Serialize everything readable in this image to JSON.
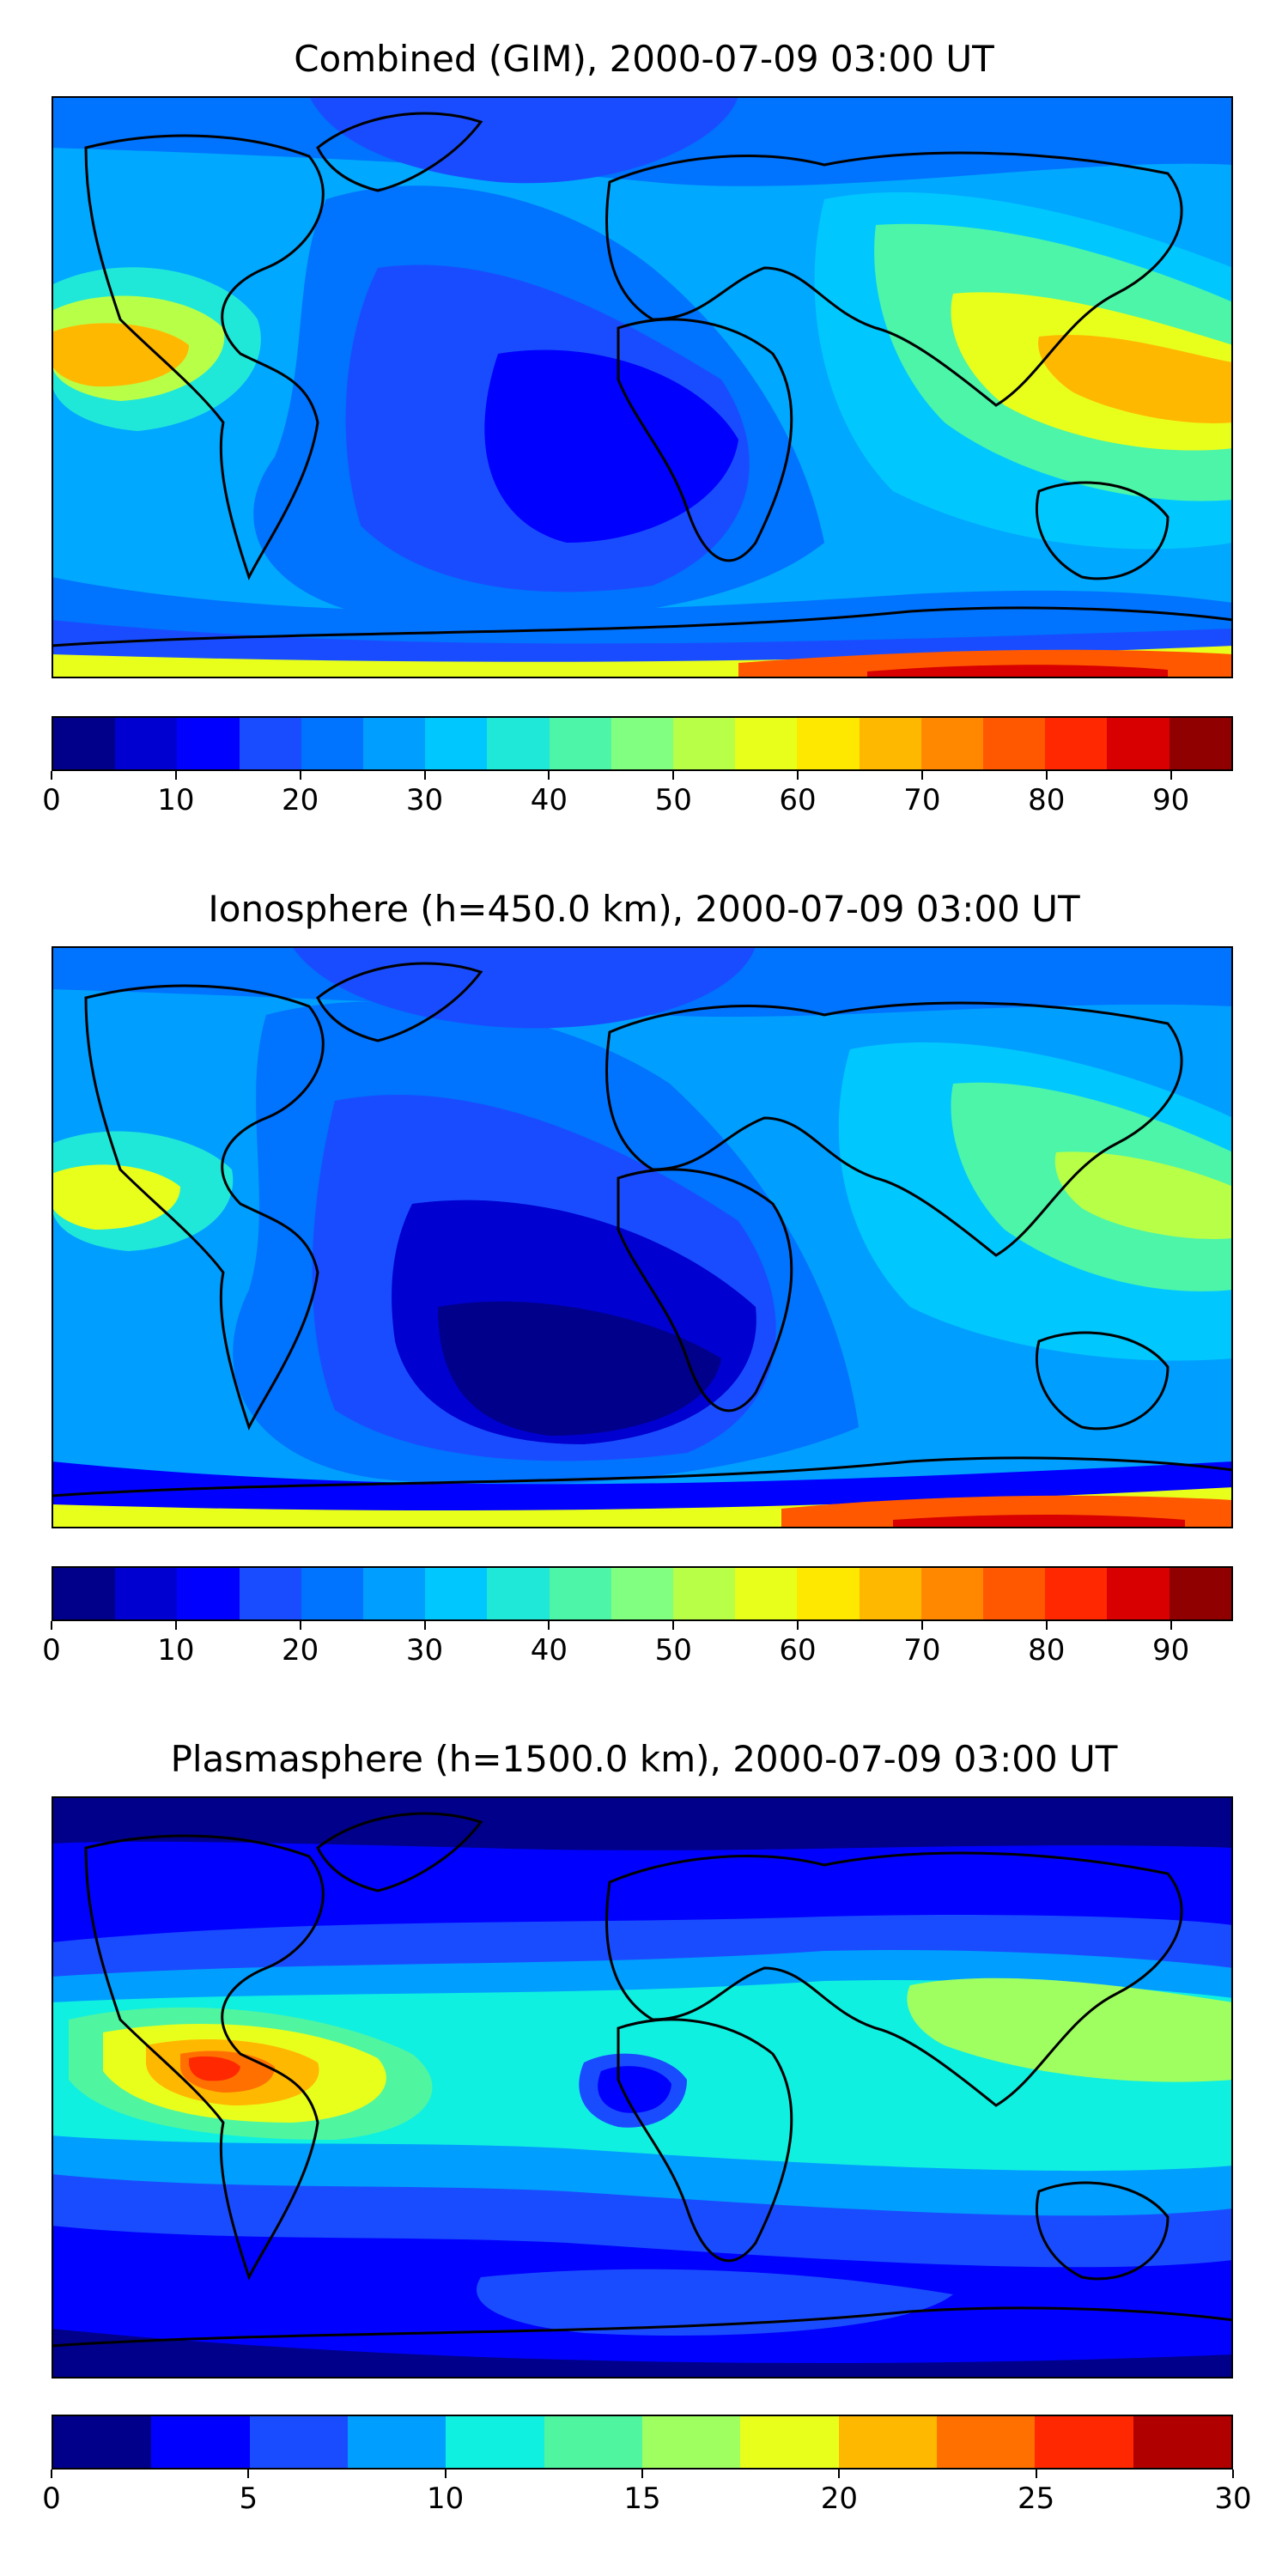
{
  "panels": [
    {
      "title": "Combined (GIM), 2000-07-09 03:00 UT",
      "colorbar": {
        "colors": [
          "#00008b",
          "#0000d0",
          "#0000ff",
          "#1a4cff",
          "#0073ff",
          "#009fff",
          "#00c8ff",
          "#20e8d8",
          "#4cf5a8",
          "#80ff80",
          "#b8ff48",
          "#e8ff1c",
          "#ffe800",
          "#ffb800",
          "#ff8800",
          "#ff5800",
          "#ff2800",
          "#d80000",
          "#900000"
        ],
        "range": [
          0,
          95
        ],
        "ticks": [
          0,
          10,
          20,
          30,
          40,
          50,
          60,
          70,
          80,
          90
        ],
        "tick_labels": [
          "0",
          "10",
          "20",
          "30",
          "40",
          "50",
          "60",
          "70",
          "80",
          "90"
        ]
      }
    },
    {
      "title": "Ionosphere  (h=450.0 km), 2000-07-09 03:00 UT",
      "colorbar": {
        "colors": [
          "#00008b",
          "#0000d0",
          "#0000ff",
          "#1a4cff",
          "#0073ff",
          "#009fff",
          "#00c8ff",
          "#20e8d8",
          "#4cf5a8",
          "#80ff80",
          "#b8ff48",
          "#e8ff1c",
          "#ffe800",
          "#ffb800",
          "#ff8800",
          "#ff5800",
          "#ff2800",
          "#d80000",
          "#900000"
        ],
        "range": [
          0,
          95
        ],
        "ticks": [
          0,
          10,
          20,
          30,
          40,
          50,
          60,
          70,
          80,
          90
        ],
        "tick_labels": [
          "0",
          "10",
          "20",
          "30",
          "40",
          "50",
          "60",
          "70",
          "80",
          "90"
        ]
      }
    },
    {
      "title": "Plasmasphere (h=1500.0 km), 2000-07-09 03:00 UT",
      "colorbar": {
        "colors": [
          "#00008b",
          "#0000ff",
          "#1a4cff",
          "#009fff",
          "#10f0e0",
          "#50f5a0",
          "#a0ff60",
          "#e8ff1c",
          "#ffb800",
          "#ff7000",
          "#ff2800",
          "#b00000"
        ],
        "range": [
          0,
          30
        ],
        "ticks": [
          0,
          5,
          10,
          15,
          20,
          25,
          30
        ],
        "tick_labels": [
          "0",
          "5",
          "10",
          "15",
          "20",
          "25",
          "30"
        ]
      }
    }
  ]
}
